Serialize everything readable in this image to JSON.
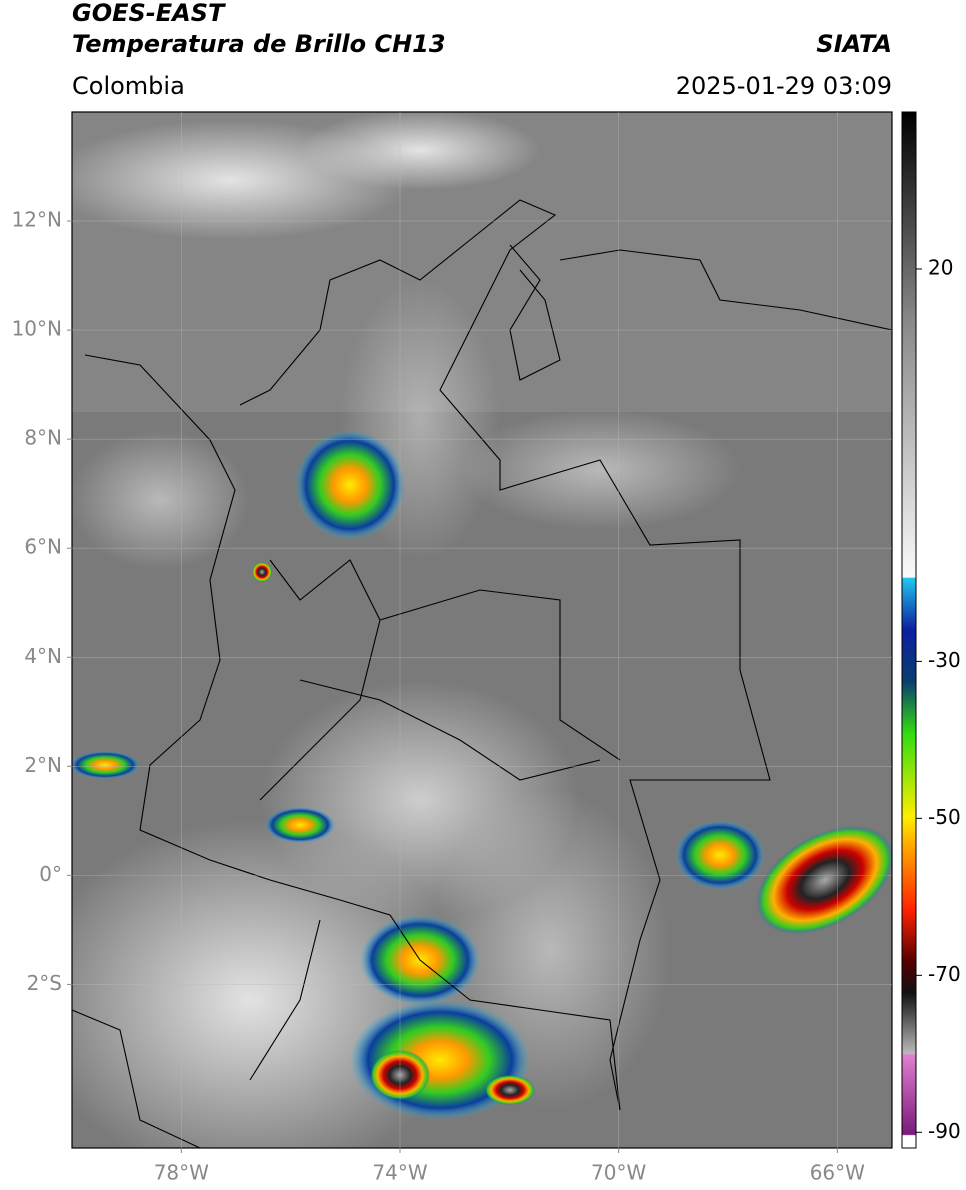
{
  "header": {
    "satellite": "GOES-EAST",
    "product": "Temperatura de Brillo CH13",
    "region": "Colombia",
    "source": "SIATA",
    "datetime": "2025-01-29 03:09"
  },
  "map": {
    "xlim": [
      -80,
      -65
    ],
    "ylim": [
      -5,
      14
    ],
    "xticks": [
      {
        "value": -78,
        "label": "78°W"
      },
      {
        "value": -74,
        "label": "74°W"
      },
      {
        "value": -70,
        "label": "70°W"
      },
      {
        "value": -66,
        "label": "66°W"
      }
    ],
    "yticks": [
      {
        "value": 12,
        "label": "12°N"
      },
      {
        "value": 10,
        "label": "10°N"
      },
      {
        "value": 8,
        "label": "8°N"
      },
      {
        "value": 6,
        "label": "6°N"
      },
      {
        "value": 4,
        "label": "4°N"
      },
      {
        "value": 2,
        "label": "2°N"
      },
      {
        "value": 0,
        "label": "0°"
      },
      {
        "value": -2,
        "label": "2°S"
      }
    ],
    "grid": true
  },
  "colorbar": {
    "lim": [
      -92,
      40
    ],
    "ticks": [
      20,
      -30,
      -50,
      -70,
      -90
    ]
  }
}
